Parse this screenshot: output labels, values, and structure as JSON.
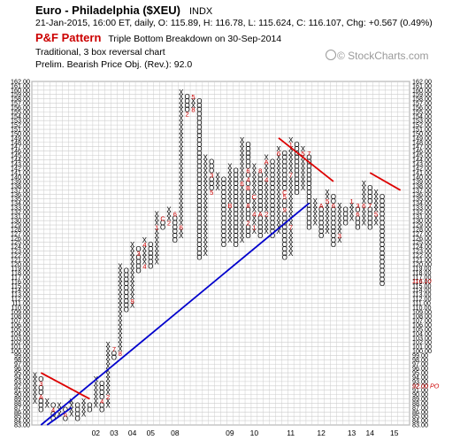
{
  "header": {
    "title": "Euro - Philadelphia ($XEU)",
    "exchange": "INDX",
    "quote_line": "21-Jan-2015, 16:00 ET, daily, O: 115.89, H: 116.78, L: 115.624, C: 116.107, Chg: +0.567 (0.49%)",
    "pattern_label": "P&F Pattern",
    "pattern_text": "Triple Bottom Breakdown on 30-Sep-2014",
    "settings_line1": "Traditional, 3 box reversal chart",
    "settings_line2": "Prelim. Bearish Price Obj. (Rev.): 92.0",
    "brand": "© StockCharts.com"
  },
  "colors": {
    "x_mark": "#000000",
    "o_mark": "#000000",
    "month_marker": "#cc0000",
    "grid": "#cccccc",
    "trendline_bull": "#0000cc",
    "trendline_bear": "#dd0000",
    "price_annotation": "#cc0000"
  },
  "chart_data": {
    "type": "point-and-figure",
    "box_size": 1,
    "reversal": 3,
    "ylim": [
      83,
      162
    ],
    "y_ticks": [
      83,
      84,
      85,
      86,
      87,
      88,
      89,
      90,
      91,
      92,
      93,
      94,
      95,
      96,
      97,
      98,
      99,
      100,
      101,
      102,
      103,
      104,
      105,
      106,
      107,
      108,
      109,
      110,
      111,
      112,
      113,
      114,
      115,
      116,
      117,
      118,
      119,
      120,
      121,
      122,
      123,
      124,
      125,
      126,
      127,
      128,
      129,
      130,
      131,
      132,
      133,
      134,
      135,
      136,
      137,
      138,
      139,
      140,
      141,
      142,
      143,
      144,
      145,
      146,
      147,
      148,
      149,
      150,
      151,
      152,
      153,
      154,
      155,
      156,
      157,
      158,
      159,
      160,
      161,
      162
    ],
    "year_labels": [
      {
        "label": "02",
        "column": 10
      },
      {
        "label": "03",
        "column": 13
      },
      {
        "label": "04",
        "column": 16
      },
      {
        "label": "05",
        "column": 19
      },
      {
        "label": "08",
        "column": 23
      },
      {
        "label": "09",
        "column": 32
      },
      {
        "label": "10",
        "column": 36
      },
      {
        "label": "11",
        "column": 42
      },
      {
        "label": "12",
        "column": 47
      },
      {
        "label": "13",
        "column": 52
      },
      {
        "label": "14",
        "column": 55
      },
      {
        "label": "15",
        "column": 59
      }
    ],
    "columns": [
      {
        "type": "X",
        "low": 88,
        "high": 95
      },
      {
        "type": "O",
        "low": 86,
        "high": 94
      },
      {
        "type": "X",
        "low": 87,
        "high": 89
      },
      {
        "type": "O",
        "low": 84,
        "high": 88
      },
      {
        "type": "X",
        "low": 85,
        "high": 88
      },
      {
        "type": "O",
        "low": 84,
        "high": 87
      },
      {
        "type": "X",
        "low": 85,
        "high": 89
      },
      {
        "type": "O",
        "low": 84,
        "high": 88
      },
      {
        "type": "X",
        "low": 85,
        "high": 89
      },
      {
        "type": "O",
        "low": 86,
        "high": 88
      },
      {
        "type": "X",
        "low": 87,
        "high": 94
      },
      {
        "type": "O",
        "low": 86,
        "high": 93
      },
      {
        "type": "X",
        "low": 87,
        "high": 102
      },
      {
        "type": "O",
        "low": 98,
        "high": 101
      },
      {
        "type": "X",
        "low": 99,
        "high": 120
      },
      {
        "type": "O",
        "low": 109,
        "high": 119
      },
      {
        "type": "X",
        "low": 110,
        "high": 125
      },
      {
        "type": "O",
        "low": 118,
        "high": 124
      },
      {
        "type": "X",
        "low": 119,
        "high": 126
      },
      {
        "type": "O",
        "low": 119,
        "high": 125
      },
      {
        "type": "X",
        "low": 120,
        "high": 132
      },
      {
        "type": "O",
        "low": 128,
        "high": 131
      },
      {
        "type": "X",
        "low": 129,
        "high": 133
      },
      {
        "type": "O",
        "low": 125,
        "high": 132
      },
      {
        "type": "X",
        "low": 126,
        "high": 160
      },
      {
        "type": "O",
        "low": 154,
        "high": 159
      },
      {
        "type": "X",
        "low": 155,
        "high": 159
      },
      {
        "type": "O",
        "low": 121,
        "high": 158
      },
      {
        "type": "X",
        "low": 122,
        "high": 145
      },
      {
        "type": "O",
        "low": 136,
        "high": 144
      },
      {
        "type": "X",
        "low": 137,
        "high": 141
      },
      {
        "type": "O",
        "low": 124,
        "high": 140
      },
      {
        "type": "X",
        "low": 125,
        "high": 143
      },
      {
        "type": "O",
        "low": 124,
        "high": 142
      },
      {
        "type": "X",
        "low": 125,
        "high": 149
      },
      {
        "type": "O",
        "low": 126,
        "high": 148
      },
      {
        "type": "X",
        "low": 127,
        "high": 143
      },
      {
        "type": "O",
        "low": 126,
        "high": 142
      },
      {
        "type": "X",
        "low": 127,
        "high": 145
      },
      {
        "type": "O",
        "low": 126,
        "high": 144
      },
      {
        "type": "X",
        "low": 127,
        "high": 147
      },
      {
        "type": "O",
        "low": 121,
        "high": 146
      },
      {
        "type": "X",
        "low": 122,
        "high": 149
      },
      {
        "type": "O",
        "low": 136,
        "high": 148
      },
      {
        "type": "X",
        "low": 137,
        "high": 147
      },
      {
        "type": "O",
        "low": 128,
        "high": 146
      },
      {
        "type": "X",
        "low": 129,
        "high": 135
      },
      {
        "type": "O",
        "low": 126,
        "high": 134
      },
      {
        "type": "X",
        "low": 127,
        "high": 137
      },
      {
        "type": "O",
        "low": 124,
        "high": 136
      },
      {
        "type": "X",
        "low": 125,
        "high": 134
      },
      {
        "type": "O",
        "low": 129,
        "high": 133
      },
      {
        "type": "X",
        "low": 130,
        "high": 135
      },
      {
        "type": "O",
        "low": 128,
        "high": 134
      },
      {
        "type": "X",
        "low": 129,
        "high": 139
      },
      {
        "type": "O",
        "low": 128,
        "high": 138
      },
      {
        "type": "X",
        "low": 129,
        "high": 137
      },
      {
        "type": "O",
        "low": 115,
        "high": 136
      }
    ],
    "trendlines": [
      {
        "kind": "bullish-support",
        "from_column": 1,
        "from_price": 83,
        "to_column": 45,
        "to_price": 134
      },
      {
        "kind": "bullish-support",
        "from_column": 2,
        "from_price": 83,
        "to_column": 6,
        "to_price": 87
      },
      {
        "kind": "bearish-resistance",
        "from_column": 1,
        "from_price": 95,
        "to_column": 9,
        "to_price": 89
      },
      {
        "kind": "bearish-resistance",
        "from_column": 40,
        "from_price": 149,
        "to_column": 49,
        "to_price": 139
      },
      {
        "kind": "bearish-resistance",
        "from_column": 55,
        "from_price": 141,
        "to_column": 60,
        "to_price": 137
      }
    ],
    "annotations": [
      {
        "label": "116.10",
        "price": 116.1
      },
      {
        "label": "92.00 PO",
        "price": 92.0
      }
    ],
    "month_markers": [
      {
        "column": 1,
        "price": 92,
        "label": "3"
      },
      {
        "column": 1,
        "price": 89,
        "label": "A"
      },
      {
        "column": 3,
        "price": 86,
        "label": "4"
      },
      {
        "column": 5,
        "price": 85,
        "label": "6"
      },
      {
        "column": 9,
        "price": 85,
        "label": "B"
      },
      {
        "column": 10,
        "price": 86,
        "label": "1"
      },
      {
        "column": 11,
        "price": 88,
        "label": "4"
      },
      {
        "column": 11,
        "price": 84,
        "label": "B"
      },
      {
        "column": 12,
        "price": 89,
        "label": "2"
      },
      {
        "column": 13,
        "price": 100,
        "label": "7"
      },
      {
        "column": 14,
        "price": 99,
        "label": "8"
      },
      {
        "column": 14,
        "price": 95,
        "label": "B"
      },
      {
        "column": 15,
        "price": 119,
        "label": "2"
      },
      {
        "column": 15,
        "price": 107,
        "label": "3"
      },
      {
        "column": 15,
        "price": 102,
        "label": "4"
      },
      {
        "column": 16,
        "price": 111,
        "label": "9"
      },
      {
        "column": 17,
        "price": 113,
        "label": "1"
      },
      {
        "column": 17,
        "price": 117,
        "label": "A"
      },
      {
        "column": 17,
        "price": 122,
        "label": "3"
      },
      {
        "column": 18,
        "price": 124,
        "label": "4"
      },
      {
        "column": 18,
        "price": 119,
        "label": "4"
      },
      {
        "column": 19,
        "price": 127,
        "label": "3"
      },
      {
        "column": 20,
        "price": 128,
        "label": "1"
      },
      {
        "column": 21,
        "price": 130,
        "label": "C"
      },
      {
        "column": 22,
        "price": 129,
        "label": "2"
      },
      {
        "column": 23,
        "price": 131,
        "label": "6"
      },
      {
        "column": 24,
        "price": 128,
        "label": "6"
      },
      {
        "column": 24,
        "price": 124,
        "label": "7"
      },
      {
        "column": 25,
        "price": 154,
        "label": "2"
      },
      {
        "column": 25,
        "price": 146,
        "label": "B"
      },
      {
        "column": 25,
        "price": 140,
        "label": "7"
      },
      {
        "column": 25,
        "price": 135,
        "label": "B"
      },
      {
        "column": 25,
        "price": 128,
        "label": "5"
      },
      {
        "column": 25,
        "price": 122,
        "label": "8"
      },
      {
        "column": 25,
        "price": 125,
        "label": "6"
      },
      {
        "column": 26,
        "price": 160,
        "label": "4"
      },
      {
        "column": 26,
        "price": 158,
        "label": "5"
      },
      {
        "column": 26,
        "price": 155,
        "label": "8"
      },
      {
        "column": 26,
        "price": 132,
        "label": "6"
      },
      {
        "column": 28,
        "price": 158,
        "label": "A"
      },
      {
        "column": 29,
        "price": 140,
        "label": "3"
      },
      {
        "column": 29,
        "price": 136,
        "label": "5"
      },
      {
        "column": 32,
        "price": 145,
        "label": "A"
      },
      {
        "column": 32,
        "price": 133,
        "label": "B"
      },
      {
        "column": 34,
        "price": 138,
        "label": "6"
      },
      {
        "column": 35,
        "price": 139,
        "label": "4"
      },
      {
        "column": 35,
        "price": 141,
        "label": "6"
      },
      {
        "column": 35,
        "price": 137,
        "label": "B"
      },
      {
        "column": 35,
        "price": 133,
        "label": "8"
      },
      {
        "column": 35,
        "price": 129,
        "label": "2"
      },
      {
        "column": 36,
        "price": 143,
        "label": "9"
      },
      {
        "column": 36,
        "price": 149,
        "label": "A"
      },
      {
        "column": 36,
        "price": 135,
        "label": "C"
      },
      {
        "column": 36,
        "price": 131,
        "label": "4"
      },
      {
        "column": 36,
        "price": 128,
        "label": "1"
      },
      {
        "column": 37,
        "price": 141,
        "label": "8"
      },
      {
        "column": 37,
        "price": 131,
        "label": "A"
      },
      {
        "column": 38,
        "price": 143,
        "label": "A"
      },
      {
        "column": 38,
        "price": 139,
        "label": "4"
      },
      {
        "column": 38,
        "price": 131,
        "label": "2"
      },
      {
        "column": 40,
        "price": 145,
        "label": "6"
      },
      {
        "column": 41,
        "price": 132,
        "label": "9"
      },
      {
        "column": 41,
        "price": 136,
        "label": "C"
      },
      {
        "column": 41,
        "price": 135,
        "label": "5"
      },
      {
        "column": 42,
        "price": 147,
        "label": "1"
      },
      {
        "column": 42,
        "price": 140,
        "label": "7"
      },
      {
        "column": 42,
        "price": 128,
        "label": "7"
      },
      {
        "column": 44,
        "price": 145,
        "label": "5"
      },
      {
        "column": 45,
        "price": 145,
        "label": "7"
      },
      {
        "column": 46,
        "price": 140,
        "label": "6"
      },
      {
        "column": 47,
        "price": 133,
        "label": "A"
      },
      {
        "column": 47,
        "price": 136,
        "label": "9"
      },
      {
        "column": 48,
        "price": 139,
        "label": "B"
      },
      {
        "column": 48,
        "price": 134,
        "label": "5"
      },
      {
        "column": 49,
        "price": 133,
        "label": "6"
      },
      {
        "column": 50,
        "price": 137,
        "label": "2"
      },
      {
        "column": 50,
        "price": 126,
        "label": "3"
      },
      {
        "column": 51,
        "price": 122,
        "label": "7"
      },
      {
        "column": 51,
        "price": 134,
        "label": "8"
      },
      {
        "column": 52,
        "price": 134,
        "label": "1"
      },
      {
        "column": 53,
        "price": 133,
        "label": "3"
      },
      {
        "column": 53,
        "price": 131,
        "label": "6"
      },
      {
        "column": 54,
        "price": 133,
        "label": "6"
      },
      {
        "column": 55,
        "price": 133,
        "label": "7"
      },
      {
        "column": 56,
        "price": 131,
        "label": "5"
      },
      {
        "column": 57,
        "price": 138,
        "label": "A"
      },
      {
        "column": 58,
        "price": 137,
        "label": "8"
      },
      {
        "column": 58,
        "price": 133,
        "label": "9"
      },
      {
        "column": 58,
        "price": 128,
        "label": "C"
      },
      {
        "column": 58,
        "price": 125,
        "label": "B"
      },
      {
        "column": 59,
        "price": 133,
        "label": "8"
      },
      {
        "column": 59,
        "price": 131,
        "label": "9"
      },
      {
        "column": 59,
        "price": 126,
        "label": "A"
      },
      {
        "column": 59,
        "price": 121,
        "label": "C"
      },
      {
        "column": 59,
        "price": 118,
        "label": "1"
      }
    ]
  }
}
